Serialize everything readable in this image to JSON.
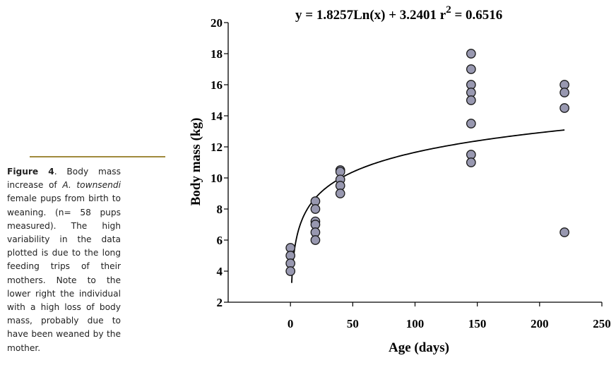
{
  "caption": {
    "label": "Figure 4",
    "part1": ". Body mass increase of ",
    "species": "A. townsendi",
    "part2": " female pups from birth to weaning. (n= 58 pups measured). The high variability in the data plotted is due to the long feeding trips of their mothers. Note to the lower right the individual with a high loss of body mass, probably due to have been weaned by the mother."
  },
  "chart_data": {
    "type": "scatter",
    "title": "",
    "equation_text": "y = 1.8257Ln(x) + 3.2401  r",
    "r2_superscript": "2",
    "r2_value": " = 0.6516",
    "xlabel": "Age (days)",
    "ylabel": "Body mass (kg)",
    "xlim": [
      -50,
      250
    ],
    "ylim": [
      2,
      20
    ],
    "xticks": [
      0,
      50,
      100,
      150,
      200,
      250
    ],
    "yticks": [
      2,
      4,
      6,
      8,
      10,
      12,
      14,
      16,
      18,
      20
    ],
    "grid": false,
    "trendline": {
      "type": "logarithmic",
      "a": 1.8257,
      "b": 3.2401,
      "x_from": 1,
      "x_to": 220
    },
    "series": [
      {
        "name": "Pups",
        "color": "#9898b0",
        "points": [
          {
            "x": 0,
            "y": 5.5
          },
          {
            "x": 0,
            "y": 5.0
          },
          {
            "x": 0,
            "y": 4.5
          },
          {
            "x": 0,
            "y": 4.0
          },
          {
            "x": 20,
            "y": 8.5
          },
          {
            "x": 20,
            "y": 8.0
          },
          {
            "x": 20,
            "y": 7.2
          },
          {
            "x": 20,
            "y": 7.0
          },
          {
            "x": 20,
            "y": 6.5
          },
          {
            "x": 20,
            "y": 6.0
          },
          {
            "x": 40,
            "y": 10.5
          },
          {
            "x": 40,
            "y": 10.4
          },
          {
            "x": 40,
            "y": 9.9
          },
          {
            "x": 40,
            "y": 9.5
          },
          {
            "x": 40,
            "y": 9.0
          },
          {
            "x": 145,
            "y": 18.0
          },
          {
            "x": 145,
            "y": 17.0
          },
          {
            "x": 145,
            "y": 16.0
          },
          {
            "x": 145,
            "y": 15.5
          },
          {
            "x": 145,
            "y": 15.0
          },
          {
            "x": 145,
            "y": 13.5
          },
          {
            "x": 145,
            "y": 11.5
          },
          {
            "x": 145,
            "y": 11.0
          },
          {
            "x": 220,
            "y": 16.0
          },
          {
            "x": 220,
            "y": 15.5
          },
          {
            "x": 220,
            "y": 14.5
          },
          {
            "x": 220,
            "y": 6.5
          }
        ]
      }
    ]
  }
}
